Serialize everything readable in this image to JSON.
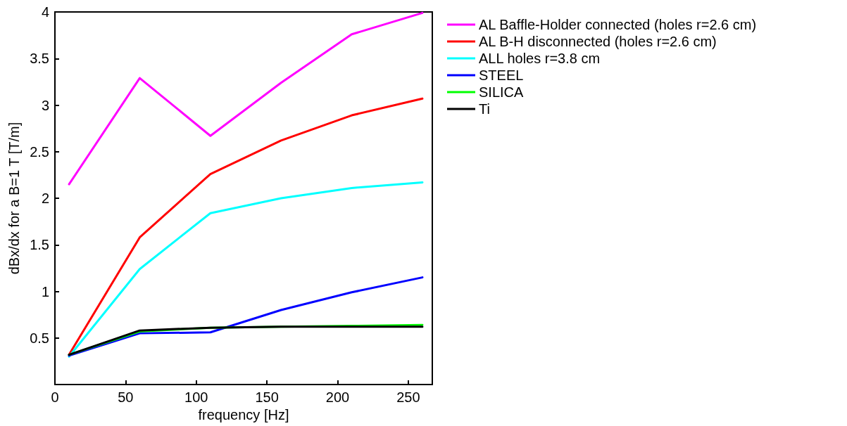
{
  "chart_data": {
    "type": "line",
    "xlabel": "frequency [Hz]",
    "ylabel": "dBx/dx for a B=1 T [T/m]",
    "x": [
      10,
      60,
      110,
      160,
      210,
      260
    ],
    "series": [
      {
        "name": "AL Baffle-Holder connected (holes r=2.6 cm)",
        "color": "#ff00ff",
        "values": [
          2.15,
          3.29,
          2.67,
          3.24,
          3.76,
          3.99
        ]
      },
      {
        "name": "AL B-H disconnected (holes r=2.6 cm)",
        "color": "#ff0000",
        "values": [
          0.32,
          1.58,
          2.26,
          2.62,
          2.89,
          3.07
        ]
      },
      {
        "name": "ALL holes r=3.8 cm",
        "color": "#00ffff",
        "values": [
          0.3,
          1.24,
          1.84,
          2.0,
          2.11,
          2.17
        ]
      },
      {
        "name": "STEEL",
        "color": "#0000ff",
        "values": [
          0.31,
          0.55,
          0.56,
          0.8,
          0.99,
          1.15
        ]
      },
      {
        "name": "SILICA",
        "color": "#00ff00",
        "values": [
          0.32,
          0.57,
          0.61,
          0.62,
          0.63,
          0.64
        ]
      },
      {
        "name": "Ti",
        "color": "#000000",
        "values": [
          0.32,
          0.58,
          0.61,
          0.62,
          0.62,
          0.62
        ]
      }
    ],
    "xlim": [
      0,
      267
    ],
    "xticks": [
      0,
      50,
      100,
      150,
      200,
      250
    ],
    "ylim": [
      0,
      4
    ],
    "yticks": [
      0.5,
      1,
      1.5,
      2,
      2.5,
      3,
      3.5,
      4
    ],
    "grid": false,
    "legend": "top right",
    "marker": "none",
    "line_style": "solid"
  }
}
